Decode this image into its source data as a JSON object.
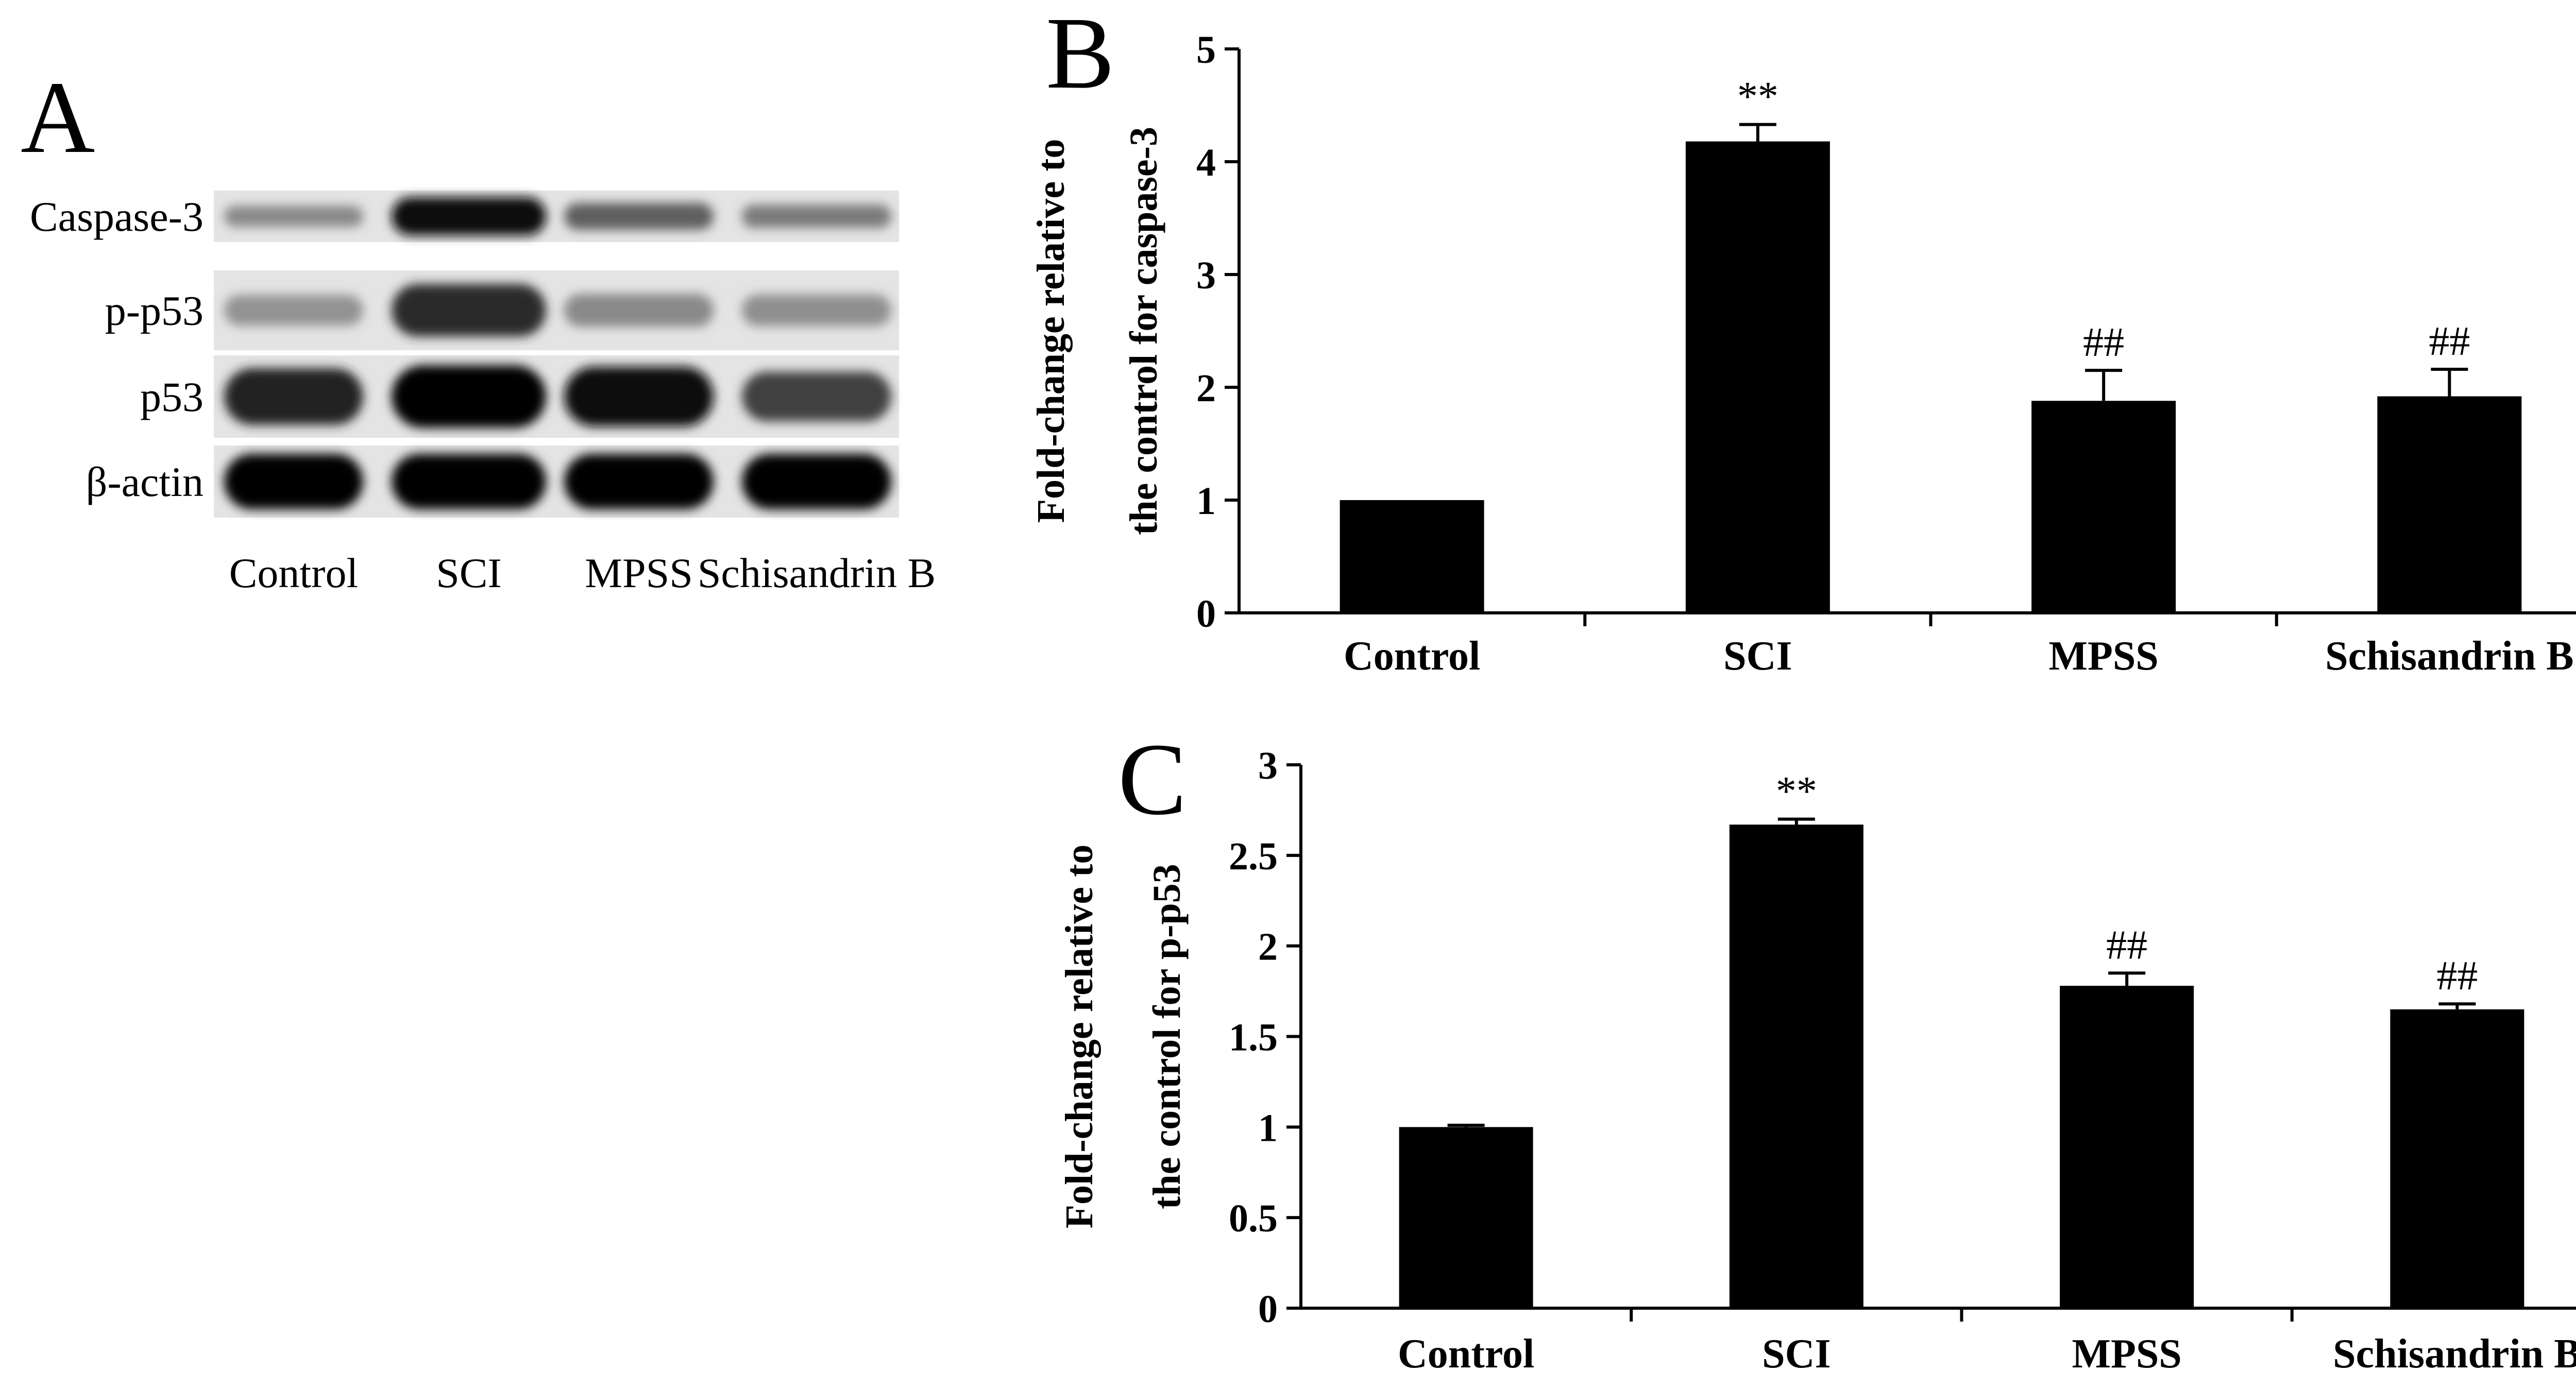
{
  "panels": {
    "a": "A",
    "b": "B",
    "c": "C"
  },
  "blot": {
    "rows": [
      "Caspase-3",
      "p-p53",
      "p53",
      "β-actin"
    ],
    "lanes": [
      "Control",
      "SCI",
      "MPSS",
      "Schisandrin B"
    ],
    "intensities": [
      [
        0.35,
        0.95,
        0.55,
        0.42
      ],
      [
        0.3,
        0.8,
        0.35,
        0.32
      ],
      [
        0.85,
        0.98,
        0.92,
        0.7
      ],
      [
        1.0,
        1.0,
        1.0,
        1.0
      ]
    ]
  },
  "chart_data": [
    {
      "type": "bar",
      "panel": "B",
      "categories": [
        "Control",
        "SCI",
        "MPSS",
        "Schisandrin B"
      ],
      "values": [
        1.0,
        4.18,
        1.88,
        1.92
      ],
      "errors": [
        0.0,
        0.15,
        0.27,
        0.24
      ],
      "annotations": [
        "",
        "**",
        "##",
        "##"
      ],
      "ylabel_line1": "Fold-change relative to",
      "ylabel_line2": "the control for caspase-3",
      "ylim": [
        0,
        5
      ],
      "yticks": [
        0,
        1,
        2,
        3,
        4,
        5
      ],
      "ytick_labels": [
        "0",
        "1",
        "2",
        "3",
        "4",
        "5"
      ],
      "bar_color": "#000000"
    },
    {
      "type": "bar",
      "panel": "C",
      "categories": [
        "Control",
        "SCI",
        "MPSS",
        "Schisandrin B"
      ],
      "values": [
        1.0,
        2.67,
        1.78,
        1.65
      ],
      "errors": [
        0.01,
        0.03,
        0.07,
        0.03
      ],
      "annotations": [
        "",
        "**",
        "##",
        "##"
      ],
      "ylabel_line1": "Fold-change relative to",
      "ylabel_line2": "the control for p-p53",
      "ylim": [
        0,
        3
      ],
      "yticks": [
        0,
        0.5,
        1,
        1.5,
        2,
        2.5,
        3
      ],
      "ytick_labels": [
        "0",
        "0.5",
        "1",
        "1.5",
        "2",
        "2.5",
        "3"
      ],
      "bar_color": "#000000"
    }
  ]
}
